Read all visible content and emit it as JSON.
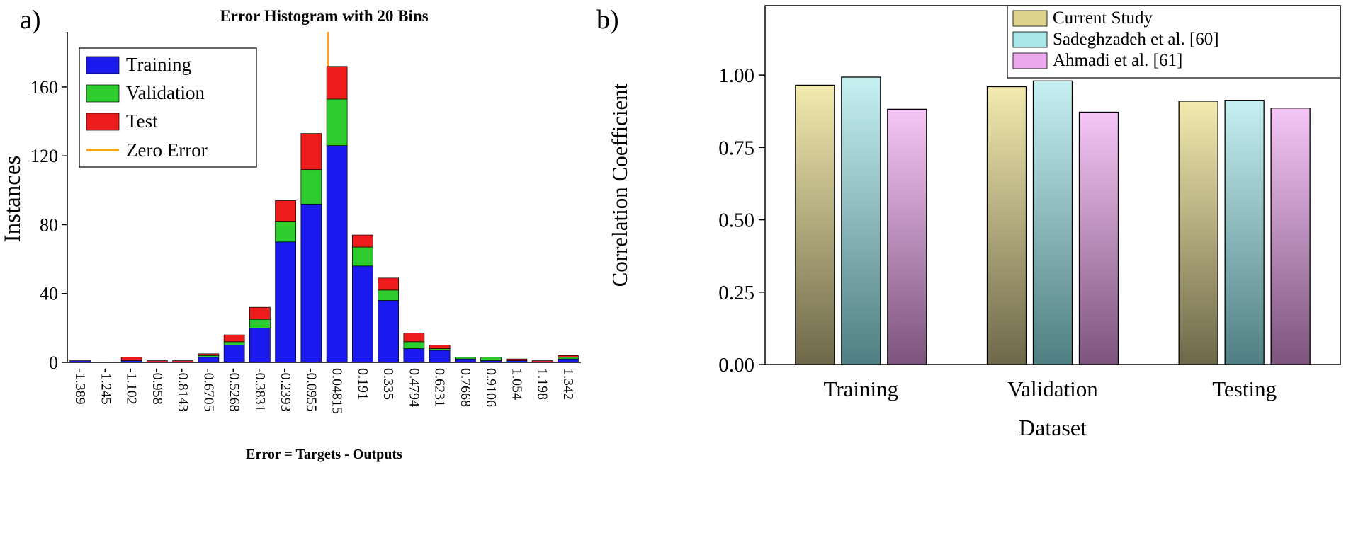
{
  "panels": {
    "a": {
      "label": "a)"
    },
    "b": {
      "label": "b)"
    }
  },
  "chart_data": [
    {
      "id": "error-histogram",
      "type": "bar",
      "stacked": true,
      "title": "Error Histogram with 20 Bins",
      "xlabel": "Error = Targets - Outputs",
      "ylabel": "Instances",
      "categories": [
        "-1.389",
        "-1.245",
        "-1.102",
        "-0.958",
        "-0.8143",
        "-0.6705",
        "-0.5268",
        "-0.3831",
        "-0.2393",
        "-0.0955",
        "0.04815",
        "0.191",
        "0.335",
        "0.4794",
        "0.6231",
        "0.7668",
        "0.9106",
        "1.054",
        "1.198",
        "1.342"
      ],
      "series": [
        {
          "name": "Training",
          "color": "#1a1aee",
          "values": [
            1,
            0,
            1,
            0,
            0,
            3,
            10,
            20,
            70,
            92,
            126,
            56,
            36,
            8,
            7,
            2,
            1,
            1,
            0,
            2
          ]
        },
        {
          "name": "Validation",
          "color": "#2ecc2e",
          "values": [
            0,
            0,
            0,
            0,
            0,
            1,
            2,
            5,
            12,
            20,
            27,
            11,
            6,
            4,
            1,
            1,
            2,
            0,
            0,
            1
          ]
        },
        {
          "name": "Test",
          "color": "#ee1c1c",
          "values": [
            0,
            0,
            2,
            1,
            1,
            1,
            4,
            7,
            12,
            21,
            19,
            7,
            7,
            5,
            2,
            0,
            0,
            1,
            1,
            1
          ]
        }
      ],
      "zero_error": {
        "label": "Zero Error",
        "color": "#ff9f1a",
        "x_value": 0
      },
      "yticks": [
        0,
        40,
        80,
        120,
        160
      ],
      "ylim": [
        0,
        190
      ],
      "legend_position": "upper-left",
      "grid": false
    },
    {
      "id": "correlation-bars",
      "type": "bar",
      "grouped": true,
      "title": "",
      "xlabel": "Dataset",
      "ylabel": "Correlation Coefficient",
      "categories": [
        "Training",
        "Validation",
        "Testing"
      ],
      "series": [
        {
          "name": "Current Study",
          "color_top": "#f2eaae",
          "color_bottom": "#6e684a",
          "legend_color": "#ddd28e",
          "values": [
            0.965,
            0.96,
            0.91
          ]
        },
        {
          "name": "Sadeghzadeh et al. [60]",
          "color_top": "#c6f0f1",
          "color_bottom": "#4f7f82",
          "legend_color": "#a9e6e7",
          "values": [
            0.993,
            0.98,
            0.913
          ]
        },
        {
          "name": "Ahmadi et al. [61]",
          "color_top": "#f6c6f6",
          "color_bottom": "#7c547c",
          "legend_color": "#eba9eb",
          "values": [
            0.882,
            0.872,
            0.886
          ]
        }
      ],
      "yticks": [
        "0.00",
        "0.25",
        "0.50",
        "0.75",
        "1.00"
      ],
      "ylim": [
        0,
        1.24
      ],
      "legend_position": "upper-right",
      "grid": false
    }
  ]
}
